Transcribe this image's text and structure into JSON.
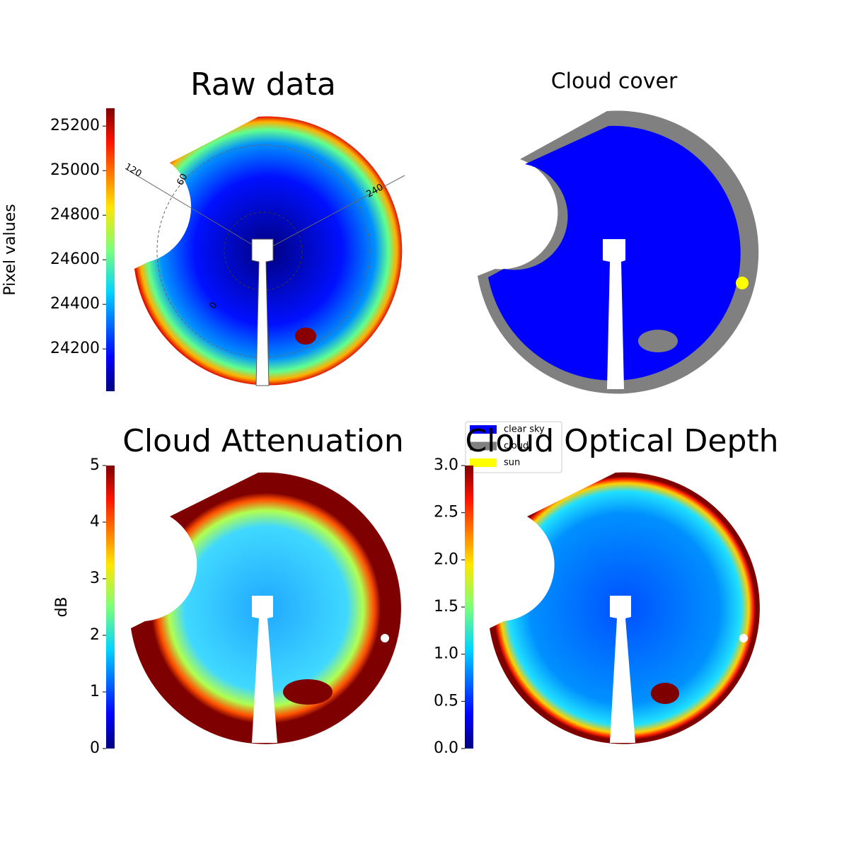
{
  "chart_data": [
    {
      "type": "image",
      "title": "Raw data",
      "colorbar_label": "Pixel values",
      "clim": [
        24010,
        25280
      ],
      "cticks": [
        24200,
        24400,
        24600,
        24800,
        25000,
        25200
      ],
      "annotations": [
        "120",
        "60",
        "240",
        "0"
      ]
    },
    {
      "type": "image",
      "title": "Cloud cover",
      "series": [
        {
          "name": "clear sky",
          "color": "#0000ff"
        },
        {
          "name": "cloud",
          "color": "#808080"
        },
        {
          "name": "sun",
          "color": "#ffff00"
        }
      ]
    },
    {
      "type": "image",
      "title": "Cloud Attenuation",
      "colorbar_label": "dB",
      "clim": [
        0,
        5
      ],
      "cticks": [
        0,
        1,
        2,
        3,
        4,
        5
      ]
    },
    {
      "type": "image",
      "title": "Cloud Optical Depth",
      "clim": [
        0,
        3
      ],
      "cticks": [
        {
          "value": 0,
          "label": "0.0"
        },
        {
          "value": 0.5,
          "label": "0.5"
        },
        {
          "value": 1,
          "label": "1.0"
        },
        {
          "value": 1.5,
          "label": "1.5"
        },
        {
          "value": 2,
          "label": "2.0"
        },
        {
          "value": 2.5,
          "label": "2.5"
        },
        {
          "value": 3,
          "label": "3.0"
        }
      ]
    }
  ]
}
